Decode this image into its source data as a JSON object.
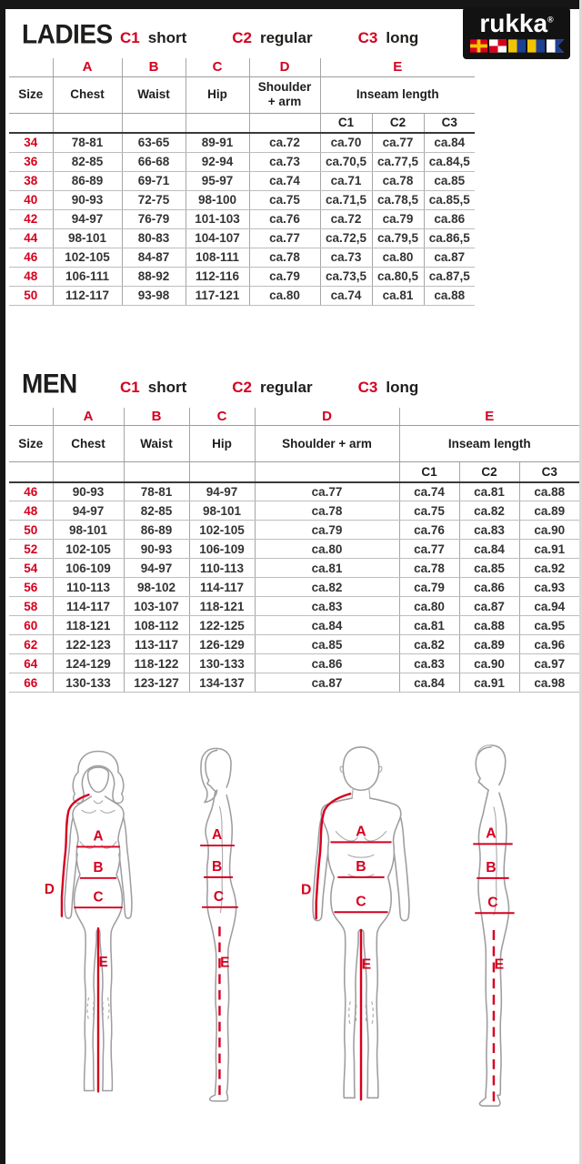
{
  "colors": {
    "accent_red": "#d6001e",
    "frame_black": "#161616",
    "text_dark": "#1d1d1b",
    "figure_gray": "#9e9ea2"
  },
  "logo": {
    "brand": "rukka",
    "registered_mark": "®",
    "flag_icons": [
      "signal-flag-r",
      "signal-flag-u",
      "signal-flag-k",
      "signal-flag-k",
      "signal-flag-a"
    ]
  },
  "legend": [
    {
      "code": "C1",
      "label": "short"
    },
    {
      "code": "C2",
      "label": "regular"
    },
    {
      "code": "C3",
      "label": "long"
    }
  ],
  "ladies": {
    "title": "LADIES",
    "table": {
      "letters": [
        "A",
        "B",
        "C",
        "D",
        "E"
      ],
      "headers": {
        "size": "Size",
        "chest": "Chest",
        "waist": "Waist",
        "hip": "Hip",
        "shoulder": "Shoulder + arm",
        "inseam": "Inseam length"
      },
      "sub_headers": [
        "C1",
        "C2",
        "C3"
      ],
      "rows": [
        {
          "size": "34",
          "chest": "78-81",
          "waist": "63-65",
          "hip": "89-91",
          "shoulder": "ca.72",
          "c1": "ca.70",
          "c2": "ca.77",
          "c3": "ca.84"
        },
        {
          "size": "36",
          "chest": "82-85",
          "waist": "66-68",
          "hip": "92-94",
          "shoulder": "ca.73",
          "c1": "ca.70,5",
          "c2": "ca.77,5",
          "c3": "ca.84,5"
        },
        {
          "size": "38",
          "chest": "86-89",
          "waist": "69-71",
          "hip": "95-97",
          "shoulder": "ca.74",
          "c1": "ca.71",
          "c2": "ca.78",
          "c3": "ca.85"
        },
        {
          "size": "40",
          "chest": "90-93",
          "waist": "72-75",
          "hip": "98-100",
          "shoulder": "ca.75",
          "c1": "ca.71,5",
          "c2": "ca.78,5",
          "c3": "ca.85,5"
        },
        {
          "size": "42",
          "chest": "94-97",
          "waist": "76-79",
          "hip": "101-103",
          "shoulder": "ca.76",
          "c1": "ca.72",
          "c2": "ca.79",
          "c3": "ca.86"
        },
        {
          "size": "44",
          "chest": "98-101",
          "waist": "80-83",
          "hip": "104-107",
          "shoulder": "ca.77",
          "c1": "ca.72,5",
          "c2": "ca.79,5",
          "c3": "ca.86,5"
        },
        {
          "size": "46",
          "chest": "102-105",
          "waist": "84-87",
          "hip": "108-111",
          "shoulder": "ca.78",
          "c1": "ca.73",
          "c2": "ca.80",
          "c3": "ca.87"
        },
        {
          "size": "48",
          "chest": "106-111",
          "waist": "88-92",
          "hip": "112-116",
          "shoulder": "ca.79",
          "c1": "ca.73,5",
          "c2": "ca.80,5",
          "c3": "ca.87,5"
        },
        {
          "size": "50",
          "chest": "112-117",
          "waist": "93-98",
          "hip": "117-121",
          "shoulder": "ca.80",
          "c1": "ca.74",
          "c2": "ca.81",
          "c3": "ca.88"
        }
      ]
    }
  },
  "men": {
    "title": "MEN",
    "table": {
      "letters": [
        "A",
        "B",
        "C",
        "D",
        "E"
      ],
      "headers": {
        "size": "Size",
        "chest": "Chest",
        "waist": "Waist",
        "hip": "Hip",
        "shoulder": "Shoulder + arm",
        "inseam": "Inseam length"
      },
      "sub_headers": [
        "C1",
        "C2",
        "C3"
      ],
      "rows": [
        {
          "size": "46",
          "chest": "90-93",
          "waist": "78-81",
          "hip": "94-97",
          "shoulder": "ca.77",
          "c1": "ca.74",
          "c2": "ca.81",
          "c3": "ca.88"
        },
        {
          "size": "48",
          "chest": "94-97",
          "waist": "82-85",
          "hip": "98-101",
          "shoulder": "ca.78",
          "c1": "ca.75",
          "c2": "ca.82",
          "c3": "ca.89"
        },
        {
          "size": "50",
          "chest": "98-101",
          "waist": "86-89",
          "hip": "102-105",
          "shoulder": "ca.79",
          "c1": "ca.76",
          "c2": "ca.83",
          "c3": "ca.90"
        },
        {
          "size": "52",
          "chest": "102-105",
          "waist": "90-93",
          "hip": "106-109",
          "shoulder": "ca.80",
          "c1": "ca.77",
          "c2": "ca.84",
          "c3": "ca.91"
        },
        {
          "size": "54",
          "chest": "106-109",
          "waist": "94-97",
          "hip": "110-113",
          "shoulder": "ca.81",
          "c1": "ca.78",
          "c2": "ca.85",
          "c3": "ca.92"
        },
        {
          "size": "56",
          "chest": "110-113",
          "waist": "98-102",
          "hip": "114-117",
          "shoulder": "ca.82",
          "c1": "ca.79",
          "c2": "ca.86",
          "c3": "ca.93"
        },
        {
          "size": "58",
          "chest": "114-117",
          "waist": "103-107",
          "hip": "118-121",
          "shoulder": "ca.83",
          "c1": "ca.80",
          "c2": "ca.87",
          "c3": "ca.94"
        },
        {
          "size": "60",
          "chest": "118-121",
          "waist": "108-112",
          "hip": "122-125",
          "shoulder": "ca.84",
          "c1": "ca.81",
          "c2": "ca.88",
          "c3": "ca.95"
        },
        {
          "size": "62",
          "chest": "122-123",
          "waist": "113-117",
          "hip": "126-129",
          "shoulder": "ca.85",
          "c1": "ca.82",
          "c2": "ca.89",
          "c3": "ca.96"
        },
        {
          "size": "64",
          "chest": "124-129",
          "waist": "118-122",
          "hip": "130-133",
          "shoulder": "ca.86",
          "c1": "ca.83",
          "c2": "ca.90",
          "c3": "ca.97"
        },
        {
          "size": "66",
          "chest": "130-133",
          "waist": "123-127",
          "hip": "134-137",
          "shoulder": "ca.87",
          "c1": "ca.84",
          "c2": "ca.91",
          "c3": "ca.98"
        }
      ]
    }
  },
  "diagrams": {
    "labels": {
      "a": "A",
      "b": "B",
      "c": "C",
      "d": "D",
      "e": "E"
    }
  }
}
